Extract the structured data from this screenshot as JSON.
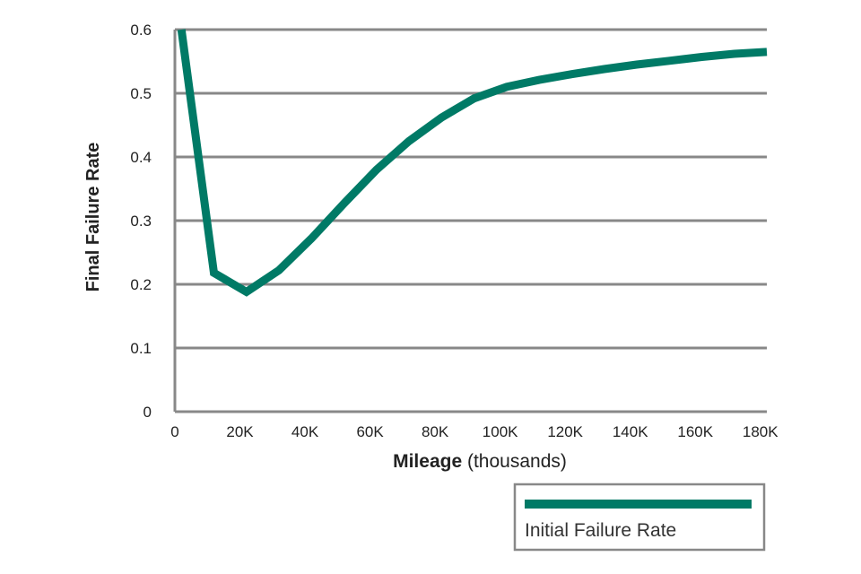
{
  "chart_data": {
    "type": "line",
    "title": "",
    "xlabel_bold": "Mileage",
    "xlabel_rest": " (thousands)",
    "ylabel": "Final Failure Rate",
    "xlim": [
      0,
      182
    ],
    "ylim": [
      0,
      0.6
    ],
    "x_ticks": [
      0,
      20,
      40,
      60,
      80,
      100,
      120,
      140,
      160,
      180
    ],
    "x_tick_labels": [
      "0",
      "20K",
      "40K",
      "60K",
      "80K",
      "100K",
      "120K",
      "140K",
      "160K",
      "180K"
    ],
    "y_ticks": [
      0,
      0.1,
      0.2,
      0.3,
      0.4,
      0.5,
      0.6
    ],
    "y_tick_labels": [
      "0",
      "0.1",
      "0.2",
      "0.3",
      "0.4",
      "0.5",
      "0.6"
    ],
    "grid": true,
    "legend_position": "bottom-right",
    "series": [
      {
        "name": "Initial Failure Rate",
        "color": "#007a66",
        "x": [
          2,
          12,
          22,
          32,
          42,
          52,
          62,
          72,
          82,
          92,
          102,
          112,
          122,
          132,
          142,
          152,
          162,
          172,
          182
        ],
        "y": [
          0.6,
          0.218,
          0.188,
          0.222,
          0.272,
          0.327,
          0.38,
          0.425,
          0.462,
          0.492,
          0.51,
          0.521,
          0.53,
          0.538,
          0.545,
          0.551,
          0.557,
          0.562,
          0.565
        ]
      }
    ]
  }
}
